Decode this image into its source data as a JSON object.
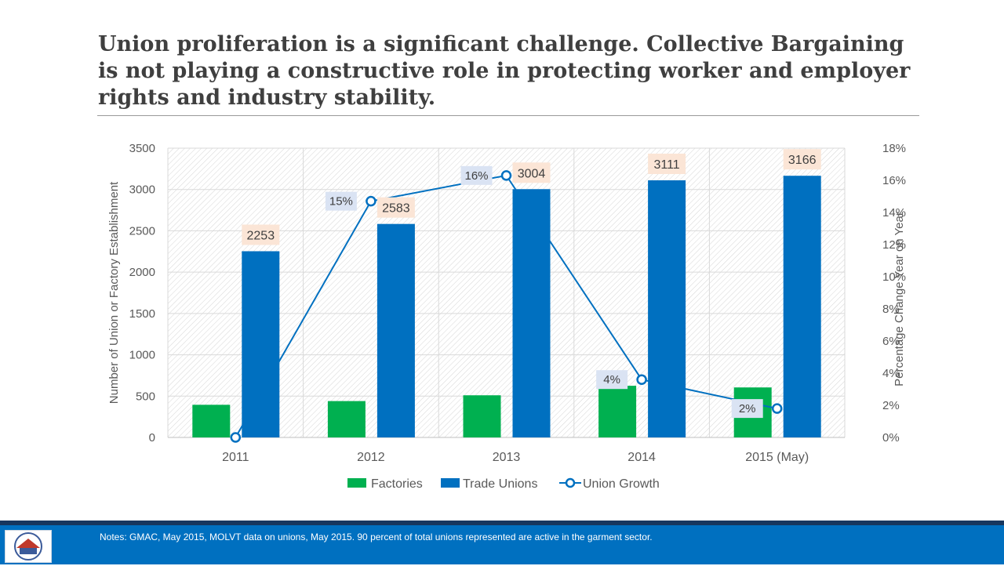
{
  "title": "Union proliferation is a significant challenge. Collective Bargaining is not playing a constructive role in protecting worker and employer rights and industry stability.",
  "footer": {
    "note": "Notes:  GMAC, May 2015,  MOLVT data on unions, May 2015.  90  percent of total unions represented are active in the garment sector."
  },
  "colors": {
    "factories": "#00b050",
    "unions": "#0070c0",
    "growth": "#0070c0",
    "bar_label_bg": "#fbe5d6",
    "pct_label_bg": "#dae3f3"
  },
  "chart_data": {
    "type": "bar",
    "categories": [
      "2011",
      "2012",
      "2013",
      "2014",
      "2015 (May)"
    ],
    "series": [
      {
        "name": "Factories",
        "type": "bar",
        "axis": "left",
        "values": [
          395,
          440,
          510,
          625,
          605
        ]
      },
      {
        "name": "Trade Unions",
        "type": "bar",
        "axis": "left",
        "values": [
          2253,
          2583,
          3004,
          3111,
          3166
        ],
        "labels": [
          "2253",
          "2583",
          "3004",
          "3111",
          "3166"
        ]
      },
      {
        "name": "Union Growth",
        "type": "line",
        "axis": "right",
        "values": [
          0,
          14.7,
          16.3,
          3.6,
          1.8
        ],
        "labels": [
          "",
          "15%",
          "16%",
          "4%",
          "2%"
        ]
      }
    ],
    "ylabel": "Number of Union or Factory Establishment",
    "y2label": "Percentage Change Year on Year",
    "ylim": [
      0,
      3500
    ],
    "y2lim": [
      0,
      18
    ],
    "yticks": [
      "0",
      "500",
      "1000",
      "1500",
      "2000",
      "2500",
      "3000",
      "3500"
    ],
    "y2ticks": [
      "0%",
      "2%",
      "4%",
      "6%",
      "8%",
      "10%",
      "12%",
      "14%",
      "16%",
      "18%"
    ],
    "legend": [
      "Factories",
      "Trade Unions",
      "Union Growth"
    ],
    "legend_position": "bottom",
    "grid": true
  }
}
